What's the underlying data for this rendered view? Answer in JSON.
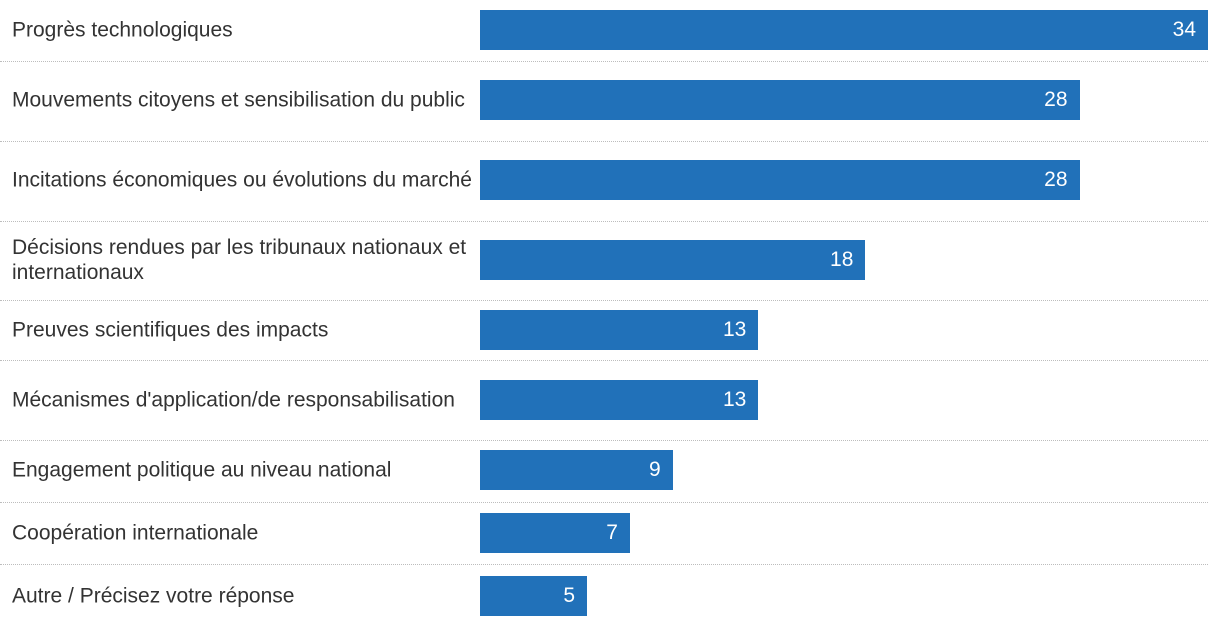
{
  "chart_data": {
    "type": "bar",
    "orientation": "horizontal",
    "categories": [
      "Progrès technologiques",
      "Mouvements citoyens et sensibilisation du public",
      "Incitations économiques ou évolutions du marché",
      "Décisions rendues par les tribunaux nationaux et internationaux",
      "Preuves scientifiques des impacts",
      "Mécanismes d'application/de responsabilisation",
      "Engagement politique au niveau national",
      "Coopération internationale",
      "Autre / Précisez votre réponse"
    ],
    "values": [
      34,
      28,
      28,
      18,
      13,
      13,
      9,
      7,
      5
    ],
    "data_labels": [
      "34",
      "28",
      "28",
      "18",
      "13",
      "13",
      "9",
      "7",
      "5"
    ],
    "xlim": [
      0,
      34
    ],
    "grid": false,
    "bar_color": "#2171b9",
    "title": "",
    "xlabel": "",
    "ylabel": ""
  }
}
